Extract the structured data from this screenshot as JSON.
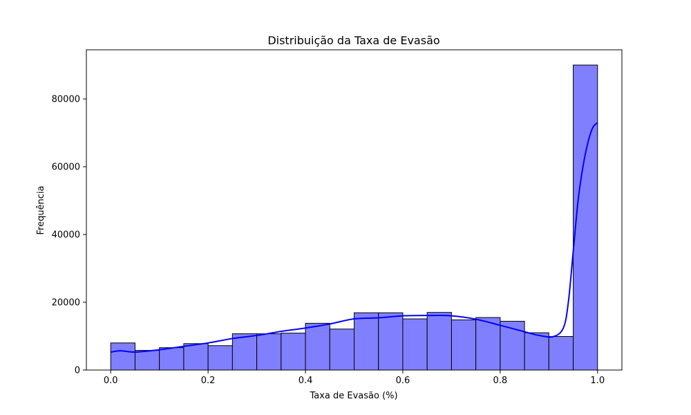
{
  "chart_data": {
    "type": "bar",
    "subtype": "histogram",
    "title": "Distribuição da Taxa de Evasão",
    "xlabel": "Taxa de Evasão (%)",
    "ylabel": "Frequência",
    "xlim": [
      -0.05,
      1.05
    ],
    "ylim": [
      0,
      94500
    ],
    "x_ticks": [
      0.0,
      0.2,
      0.4,
      0.6,
      0.8,
      1.0
    ],
    "x_tick_labels": [
      "0.0",
      "0.2",
      "0.4",
      "0.6",
      "0.8",
      "1.0"
    ],
    "y_ticks": [
      0,
      20000,
      40000,
      60000,
      80000
    ],
    "y_tick_labels": [
      "0",
      "20000",
      "40000",
      "60000",
      "80000"
    ],
    "bin_edges": [
      0.0,
      0.05,
      0.1,
      0.15,
      0.2,
      0.25,
      0.3,
      0.35,
      0.4,
      0.45,
      0.5,
      0.55,
      0.6,
      0.65,
      0.7,
      0.75,
      0.8,
      0.85,
      0.9,
      0.95,
      1.0
    ],
    "values": [
      8000,
      5800,
      6600,
      7800,
      7200,
      10700,
      10700,
      10900,
      13800,
      12100,
      16900,
      16900,
      15100,
      17000,
      14800,
      15500,
      14400,
      11000,
      9900,
      90000
    ],
    "bar_color": "#8080ff",
    "bar_edge_color": "#000000",
    "kde": {
      "name": "",
      "color": "#0000ff",
      "x": [
        0.0,
        0.02,
        0.05,
        0.1,
        0.15,
        0.2,
        0.25,
        0.3,
        0.35,
        0.4,
        0.45,
        0.5,
        0.55,
        0.6,
        0.65,
        0.7,
        0.75,
        0.8,
        0.85,
        0.88,
        0.91,
        0.93,
        0.94,
        0.95,
        0.96,
        0.97,
        0.98,
        0.99,
        1.0
      ],
      "y": [
        5300,
        5700,
        5300,
        6000,
        7000,
        8000,
        9300,
        10200,
        11400,
        12400,
        13600,
        15100,
        15400,
        16000,
        16100,
        16000,
        15000,
        13200,
        11300,
        10200,
        9900,
        12500,
        20000,
        35000,
        50000,
        60000,
        67000,
        71500,
        73000
      ]
    },
    "grid": false
  }
}
